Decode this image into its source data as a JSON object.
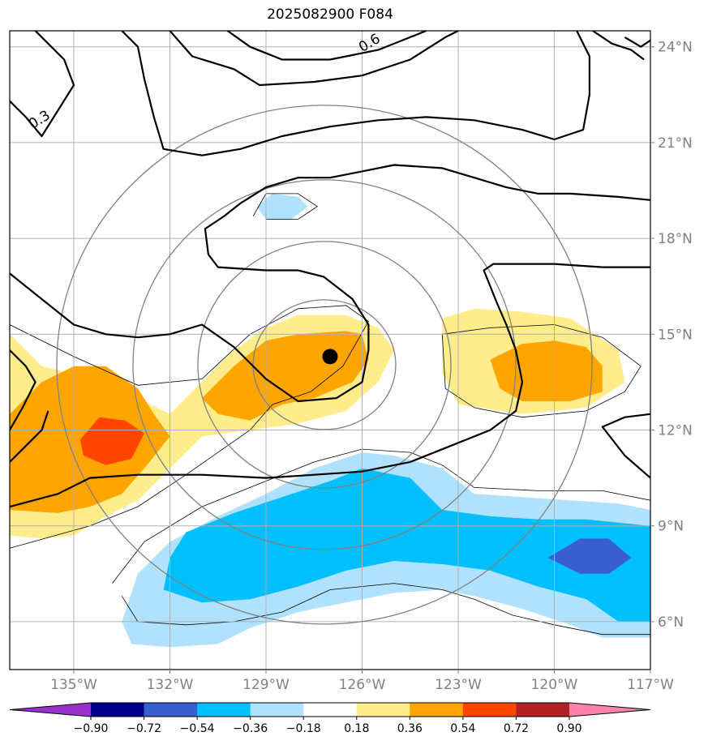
{
  "chart_data": {
    "type": "heatmap",
    "title": "2025082900 F084",
    "map": {
      "lon_range": [
        -137,
        -117
      ],
      "lat_range": [
        4.5,
        24.5
      ],
      "lon_ticks": [
        -135,
        -132,
        -129,
        -126,
        -123,
        -120,
        -117
      ],
      "lon_tick_labels": [
        "135°W",
        "132°W",
        "129°W",
        "126°W",
        "123°W",
        "120°W",
        "117°W"
      ],
      "lat_ticks": [
        6,
        9,
        12,
        15,
        18,
        21,
        24
      ],
      "lat_tick_labels": [
        "6°N",
        "9°N",
        "12°N",
        "15°N",
        "18°N",
        "21°N",
        "24°N"
      ],
      "grid": true
    },
    "storm_center": {
      "lon": -127.0,
      "lat": 14.3
    },
    "contour_labels": [
      "0.3",
      "0.6"
    ],
    "colorbar": {
      "ticks": [
        "−0.90",
        "−0.72",
        "−0.54",
        "−0.36",
        "−0.18",
        "0.18",
        "0.36",
        "0.54",
        "0.72",
        "0.90"
      ],
      "colors": [
        "#9932cc",
        "#00008b",
        "#3a5fcd",
        "#00bfff",
        "#b0e2ff",
        "#ffffff",
        "#ffec8b",
        "#ffa500",
        "#ff4500",
        "#b22222",
        "#ff82ab"
      ],
      "extend": "both"
    },
    "shaded_regions": [
      {
        "level": 0.18,
        "color": "#ffec8b",
        "polygon": [
          [
            -137,
            15.0
          ],
          [
            -136,
            14.0
          ],
          [
            -134,
            13.5
          ],
          [
            -133,
            13.0
          ],
          [
            -132,
            12.5
          ],
          [
            -131,
            13.5
          ],
          [
            -130,
            14.5
          ],
          [
            -129,
            15.2
          ],
          [
            -128,
            15.6
          ],
          [
            -126.5,
            15.6
          ],
          [
            -125.5,
            15.2
          ],
          [
            -125,
            14.5
          ],
          [
            -125.5,
            13.5
          ],
          [
            -126.5,
            12.6
          ],
          [
            -128,
            12.2
          ],
          [
            -129.5,
            12.0
          ],
          [
            -131,
            11.8
          ],
          [
            -132,
            10.8
          ],
          [
            -133,
            9.8
          ],
          [
            -134,
            9.3
          ],
          [
            -135,
            8.7
          ],
          [
            -136,
            8.6
          ],
          [
            -137,
            8.7
          ]
        ]
      },
      {
        "level": 0.18,
        "color": "#ffec8b",
        "polygon": [
          [
            -123.5,
            15.5
          ],
          [
            -122.5,
            15.8
          ],
          [
            -121,
            15.7
          ],
          [
            -119.5,
            15.5
          ],
          [
            -118,
            14.5
          ],
          [
            -117.8,
            13.5
          ],
          [
            -119,
            12.7
          ],
          [
            -121,
            12.5
          ],
          [
            -123,
            12.8
          ],
          [
            -123.5,
            13.8
          ]
        ]
      },
      {
        "level": 0.36,
        "color": "#ffa500",
        "polygon": [
          [
            -137,
            12.5
          ],
          [
            -136,
            13.5
          ],
          [
            -135,
            14.0
          ],
          [
            -134,
            14.0
          ],
          [
            -133,
            13.3
          ],
          [
            -132.5,
            12.5
          ],
          [
            -132,
            11.8
          ],
          [
            -132.8,
            10.8
          ],
          [
            -133.5,
            10.0
          ],
          [
            -134.5,
            9.6
          ],
          [
            -135.5,
            9.4
          ],
          [
            -137,
            9.5
          ]
        ]
      },
      {
        "level": 0.36,
        "color": "#ffa500",
        "polygon": [
          [
            -131,
            13.0
          ],
          [
            -130,
            14.0
          ],
          [
            -129,
            14.8
          ],
          [
            -128,
            15.0
          ],
          [
            -126.5,
            15.1
          ],
          [
            -126,
            15.0
          ],
          [
            -125.8,
            14.2
          ],
          [
            -126.3,
            13.5
          ],
          [
            -127.5,
            13.0
          ],
          [
            -128.5,
            12.8
          ],
          [
            -129.5,
            12.3
          ],
          [
            -130.5,
            12.5
          ]
        ]
      },
      {
        "level": 0.36,
        "color": "#ffa500",
        "polygon": [
          [
            -122,
            14.2
          ],
          [
            -121,
            14.7
          ],
          [
            -120,
            14.8
          ],
          [
            -119,
            14.6
          ],
          [
            -118.5,
            14.0
          ],
          [
            -118.5,
            13.2
          ],
          [
            -119.5,
            12.9
          ],
          [
            -121,
            12.9
          ],
          [
            -121.7,
            13.3
          ]
        ]
      },
      {
        "level": 0.54,
        "color": "#ff4500",
        "polygon": [
          [
            -134.8,
            11.7
          ],
          [
            -134.2,
            12.4
          ],
          [
            -133.4,
            12.3
          ],
          [
            -132.8,
            11.9
          ],
          [
            -133.2,
            11.1
          ],
          [
            -134.0,
            10.9
          ],
          [
            -134.7,
            11.2
          ]
        ]
      },
      {
        "level": -0.18,
        "color": "#b0e2ff",
        "polygon": [
          [
            -133.5,
            6.0
          ],
          [
            -133,
            7.5
          ],
          [
            -132,
            8.5
          ],
          [
            -130.5,
            9.3
          ],
          [
            -129,
            10.0
          ],
          [
            -127.5,
            10.8
          ],
          [
            -126,
            11.3
          ],
          [
            -125,
            11.2
          ],
          [
            -123.5,
            10.8
          ],
          [
            -122.5,
            10.0
          ],
          [
            -121,
            9.9
          ],
          [
            -119.5,
            9.8
          ],
          [
            -118,
            9.7
          ],
          [
            -117,
            9.5
          ],
          [
            -117,
            5.5
          ],
          [
            -118.5,
            5.5
          ],
          [
            -119.5,
            5.9
          ],
          [
            -121,
            6.4
          ],
          [
            -122.5,
            6.8
          ],
          [
            -123.5,
            7.0
          ],
          [
            -125,
            6.9
          ],
          [
            -126.5,
            6.6
          ],
          [
            -128,
            6.3
          ],
          [
            -129.5,
            5.8
          ],
          [
            -130.5,
            5.3
          ],
          [
            -132,
            5.2
          ],
          [
            -133.2,
            5.3
          ]
        ]
      },
      {
        "level": -0.18,
        "color": "#b0e2ff",
        "polygon": [
          [
            -129.3,
            19.0
          ],
          [
            -128.8,
            19.4
          ],
          [
            -128,
            19.3
          ],
          [
            -127.7,
            19.0
          ],
          [
            -128.2,
            18.6
          ],
          [
            -129,
            18.6
          ]
        ]
      },
      {
        "level": -0.36,
        "color": "#00bfff",
        "polygon": [
          [
            -132,
            8.0
          ],
          [
            -131.5,
            8.8
          ],
          [
            -130,
            9.4
          ],
          [
            -128.5,
            9.9
          ],
          [
            -127,
            10.4
          ],
          [
            -126,
            10.8
          ],
          [
            -124.5,
            10.5
          ],
          [
            -123.5,
            9.5
          ],
          [
            -122,
            9.3
          ],
          [
            -120.5,
            9.2
          ],
          [
            -119,
            9.2
          ],
          [
            -117,
            9.0
          ],
          [
            -117,
            6.0
          ],
          [
            -118,
            6.0
          ],
          [
            -119,
            6.7
          ],
          [
            -120.5,
            7.1
          ],
          [
            -122,
            7.6
          ],
          [
            -123.5,
            7.8
          ],
          [
            -125,
            7.9
          ],
          [
            -126.5,
            7.6
          ],
          [
            -128,
            7.1
          ],
          [
            -129.5,
            6.7
          ],
          [
            -131,
            6.6
          ],
          [
            -132.2,
            7.0
          ]
        ]
      },
      {
        "level": -0.54,
        "color": "#3a5fcd",
        "polygon": [
          [
            -120.2,
            8.0
          ],
          [
            -119.2,
            8.6
          ],
          [
            -118.3,
            8.6
          ],
          [
            -117.6,
            8.0
          ],
          [
            -118.3,
            7.5
          ],
          [
            -119.2,
            7.5
          ]
        ]
      }
    ]
  }
}
